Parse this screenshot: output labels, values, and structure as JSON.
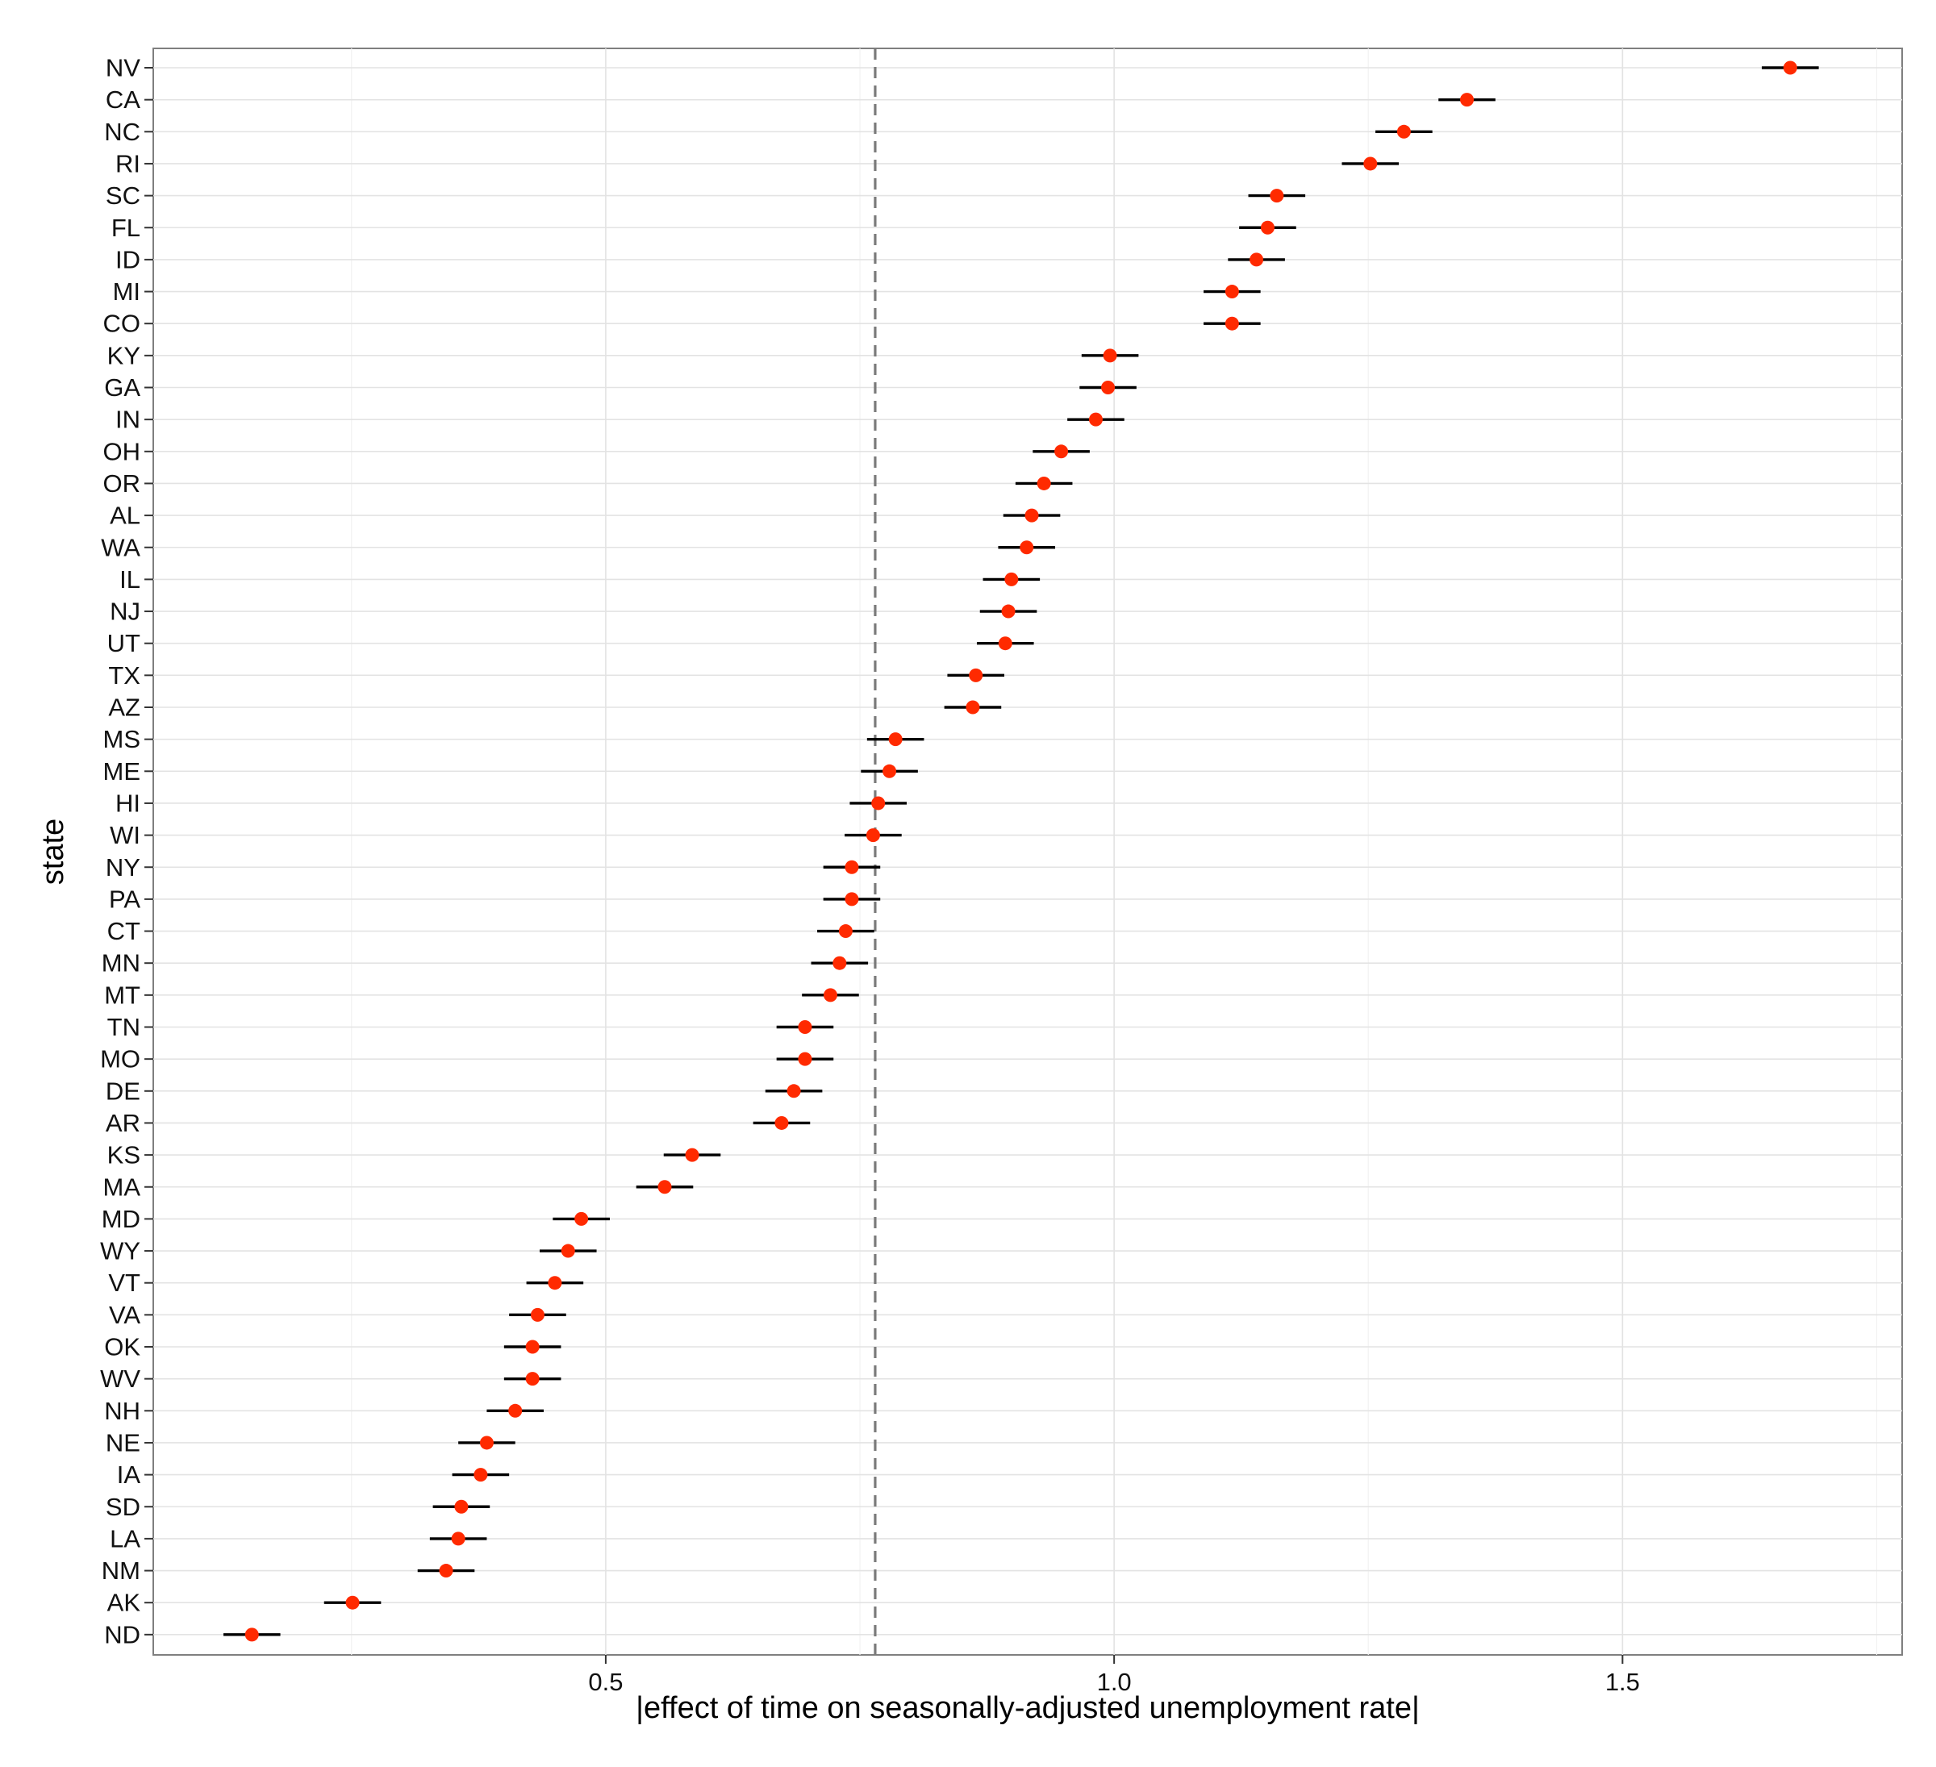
{
  "chart_data": {
    "type": "scatter",
    "xlabel": "|effect of time on seasonally-adjusted unemployment rate|",
    "ylabel": "state",
    "xlim": [
      0.055,
      1.775
    ],
    "x_ticks": [
      {
        "value": 0.5,
        "label": "0.5"
      },
      {
        "value": 1.0,
        "label": "1.0"
      },
      {
        "value": 1.5,
        "label": "1.5"
      }
    ],
    "reference_line": {
      "x": 0.765,
      "style": "dashed"
    },
    "grid": true,
    "point_color": "#ff2a00",
    "errorbar_halfwidth": 0.028,
    "points": [
      {
        "state": "NV",
        "value": 1.665
      },
      {
        "state": "CA",
        "value": 1.347
      },
      {
        "state": "NC",
        "value": 1.285
      },
      {
        "state": "RI",
        "value": 1.252
      },
      {
        "state": "SC",
        "value": 1.16
      },
      {
        "state": "FL",
        "value": 1.151
      },
      {
        "state": "ID",
        "value": 1.14
      },
      {
        "state": "MI",
        "value": 1.116
      },
      {
        "state": "CO",
        "value": 1.116
      },
      {
        "state": "KY",
        "value": 0.996
      },
      {
        "state": "GA",
        "value": 0.994
      },
      {
        "state": "IN",
        "value": 0.982
      },
      {
        "state": "OH",
        "value": 0.948
      },
      {
        "state": "OR",
        "value": 0.931
      },
      {
        "state": "AL",
        "value": 0.919
      },
      {
        "state": "WA",
        "value": 0.914
      },
      {
        "state": "IL",
        "value": 0.899
      },
      {
        "state": "NJ",
        "value": 0.896
      },
      {
        "state": "UT",
        "value": 0.893
      },
      {
        "state": "TX",
        "value": 0.864
      },
      {
        "state": "AZ",
        "value": 0.861
      },
      {
        "state": "MS",
        "value": 0.785
      },
      {
        "state": "ME",
        "value": 0.779
      },
      {
        "state": "HI",
        "value": 0.768
      },
      {
        "state": "WI",
        "value": 0.763
      },
      {
        "state": "NY",
        "value": 0.742
      },
      {
        "state": "PA",
        "value": 0.742
      },
      {
        "state": "CT",
        "value": 0.736
      },
      {
        "state": "MN",
        "value": 0.73
      },
      {
        "state": "MT",
        "value": 0.721
      },
      {
        "state": "TN",
        "value": 0.696
      },
      {
        "state": "MO",
        "value": 0.696
      },
      {
        "state": "DE",
        "value": 0.685
      },
      {
        "state": "AR",
        "value": 0.673
      },
      {
        "state": "KS",
        "value": 0.585
      },
      {
        "state": "MA",
        "value": 0.558
      },
      {
        "state": "MD",
        "value": 0.476
      },
      {
        "state": "WY",
        "value": 0.463
      },
      {
        "state": "VT",
        "value": 0.45
      },
      {
        "state": "VA",
        "value": 0.433
      },
      {
        "state": "OK",
        "value": 0.428
      },
      {
        "state": "WV",
        "value": 0.428
      },
      {
        "state": "NH",
        "value": 0.411
      },
      {
        "state": "NE",
        "value": 0.383
      },
      {
        "state": "IA",
        "value": 0.377
      },
      {
        "state": "SD",
        "value": 0.358
      },
      {
        "state": "LA",
        "value": 0.355
      },
      {
        "state": "NM",
        "value": 0.343
      },
      {
        "state": "AK",
        "value": 0.251
      },
      {
        "state": "ND",
        "value": 0.152
      }
    ]
  }
}
